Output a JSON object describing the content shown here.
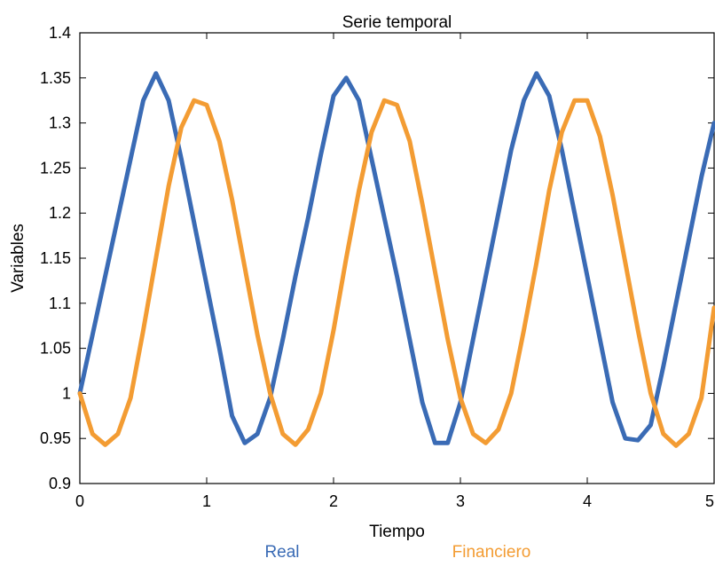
{
  "chart_data": {
    "type": "line",
    "title": "Serie temporal",
    "xlabel": "Tiempo",
    "ylabel": "Variables",
    "xlim": [
      0,
      5
    ],
    "ylim": [
      0.9,
      1.4
    ],
    "xticks": [
      "0",
      "1",
      "2",
      "3",
      "4",
      "5"
    ],
    "yticks": [
      "0.9",
      "0.95",
      "1",
      "1.05",
      "1.1",
      "1.15",
      "1.2",
      "1.25",
      "1.3",
      "1.35",
      "1.4"
    ],
    "grid": false,
    "legend_position": "bottom",
    "series": [
      {
        "name": "Real",
        "color": "#3a6bb5",
        "x": [
          0,
          0.1,
          0.2,
          0.3,
          0.4,
          0.5,
          0.6,
          0.7,
          0.8,
          0.9,
          1.0,
          1.1,
          1.2,
          1.3,
          1.4,
          1.5,
          1.6,
          1.7,
          1.8,
          1.9,
          2.0,
          2.1,
          2.2,
          2.3,
          2.4,
          2.5,
          2.6,
          2.7,
          2.8,
          2.9,
          3.0,
          3.1,
          3.2,
          3.3,
          3.4,
          3.5,
          3.6,
          3.7,
          3.8,
          3.9,
          4.0,
          4.1,
          4.2,
          4.3,
          4.4,
          4.5,
          4.6,
          4.7,
          4.8,
          4.9,
          5.0
        ],
        "values": [
          1.0,
          1.065,
          1.13,
          1.195,
          1.26,
          1.325,
          1.355,
          1.325,
          1.26,
          1.19,
          1.12,
          1.05,
          0.975,
          0.945,
          0.955,
          0.995,
          1.06,
          1.13,
          1.195,
          1.265,
          1.33,
          1.35,
          1.325,
          1.26,
          1.195,
          1.13,
          1.06,
          0.99,
          0.945,
          0.945,
          0.99,
          1.06,
          1.13,
          1.2,
          1.27,
          1.325,
          1.355,
          1.33,
          1.27,
          1.2,
          1.13,
          1.06,
          0.99,
          0.95,
          0.948,
          0.965,
          1.03,
          1.1,
          1.17,
          1.24,
          1.3
        ]
      },
      {
        "name": "Financiero",
        "color": "#f39c33",
        "x": [
          0,
          0.1,
          0.2,
          0.3,
          0.4,
          0.5,
          0.6,
          0.7,
          0.8,
          0.9,
          1.0,
          1.1,
          1.2,
          1.3,
          1.4,
          1.5,
          1.6,
          1.7,
          1.8,
          1.9,
          2.0,
          2.1,
          2.2,
          2.3,
          2.4,
          2.5,
          2.6,
          2.7,
          2.8,
          2.9,
          3.0,
          3.1,
          3.2,
          3.3,
          3.4,
          3.5,
          3.6,
          3.7,
          3.8,
          3.9,
          4.0,
          4.1,
          4.2,
          4.3,
          4.4,
          4.5,
          4.6,
          4.7,
          4.8,
          4.9,
          5.0
        ],
        "values": [
          1.0,
          0.955,
          0.943,
          0.955,
          0.995,
          1.07,
          1.15,
          1.23,
          1.295,
          1.325,
          1.32,
          1.28,
          1.215,
          1.14,
          1.065,
          1.0,
          0.955,
          0.943,
          0.96,
          1.0,
          1.07,
          1.15,
          1.225,
          1.29,
          1.325,
          1.32,
          1.28,
          1.21,
          1.135,
          1.06,
          0.995,
          0.955,
          0.945,
          0.96,
          1.0,
          1.07,
          1.145,
          1.225,
          1.29,
          1.325,
          1.325,
          1.285,
          1.22,
          1.145,
          1.07,
          1.0,
          0.955,
          0.942,
          0.955,
          0.995,
          1.095
        ]
      }
    ]
  }
}
